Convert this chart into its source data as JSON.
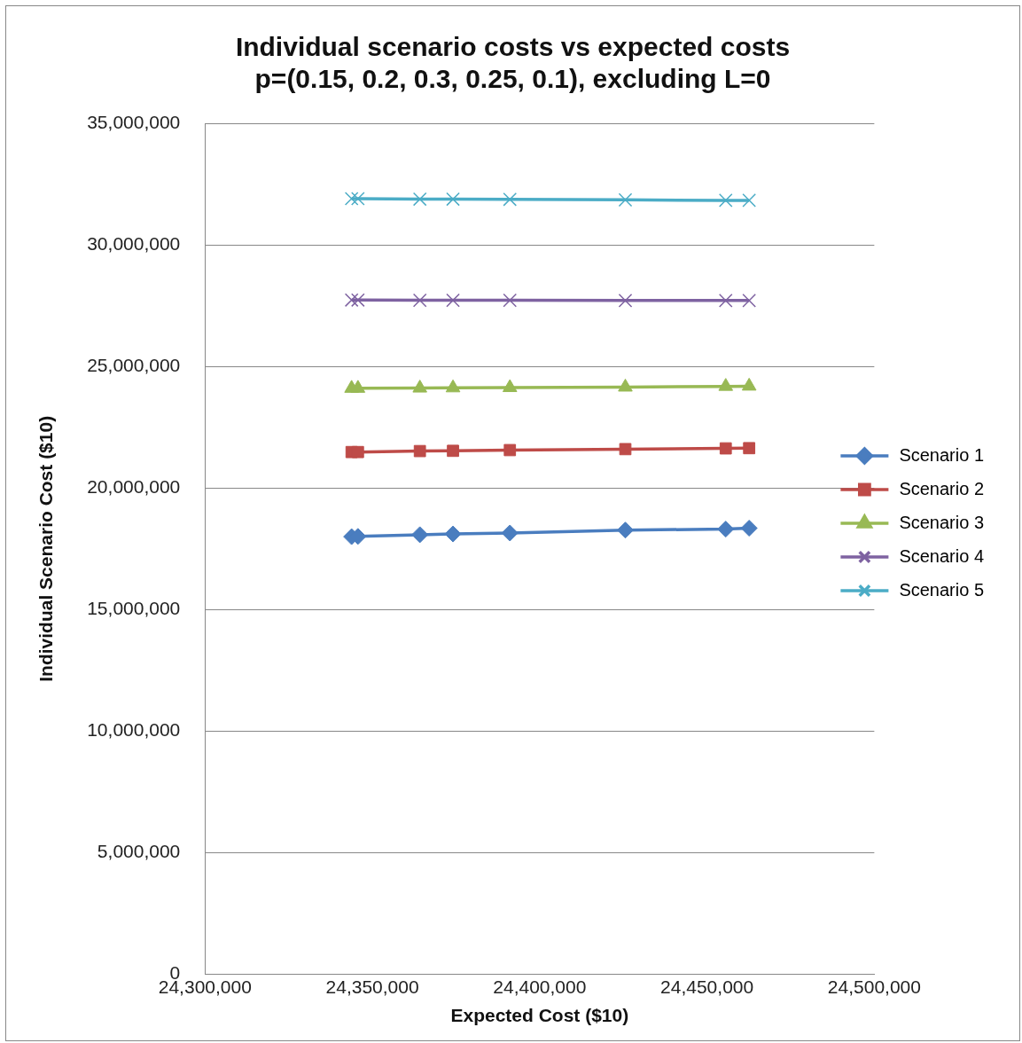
{
  "chart_data": {
    "type": "line",
    "title": [
      "Individual scenario costs vs expected costs",
      "p=(0.15, 0.2, 0.3, 0.25, 0.1), excluding L=0"
    ],
    "xlabel": "Expected Cost ($10)",
    "ylabel": "Individual Scenario Cost ($10)",
    "x": [
      24343800,
      24345700,
      24364200,
      24374100,
      24391100,
      24425600,
      24455600,
      24462600
    ],
    "series": [
      {
        "name": "Scenario 1",
        "color": "#4a7dbf",
        "marker": "diamond",
        "values": [
          18000000,
          18010000,
          18080000,
          18110000,
          18150000,
          18270000,
          18310000,
          18350000
        ]
      },
      {
        "name": "Scenario 2",
        "color": "#be4b48",
        "marker": "square",
        "values": [
          21480000,
          21480000,
          21520000,
          21530000,
          21560000,
          21600000,
          21630000,
          21640000
        ]
      },
      {
        "name": "Scenario 3",
        "color": "#98b954",
        "marker": "triangle",
        "values": [
          24100000,
          24100000,
          24110000,
          24120000,
          24130000,
          24150000,
          24180000,
          24190000
        ]
      },
      {
        "name": "Scenario 4",
        "color": "#7e62a1",
        "marker": "cross",
        "values": [
          27730000,
          27730000,
          27720000,
          27720000,
          27720000,
          27710000,
          27710000,
          27710000
        ]
      },
      {
        "name": "Scenario 5",
        "color": "#4bacc6",
        "marker": "cross",
        "values": [
          31900000,
          31900000,
          31880000,
          31880000,
          31870000,
          31850000,
          31830000,
          31830000
        ]
      }
    ],
    "xlim": [
      24300000,
      24500000
    ],
    "xticks": [
      {
        "value": 24300000,
        "label": "24,300,000"
      },
      {
        "value": 24350000,
        "label": "24,350,000"
      },
      {
        "value": 24400000,
        "label": "24,400,000"
      },
      {
        "value": 24450000,
        "label": "24,450,000"
      },
      {
        "value": 24500000,
        "label": "24,500,000"
      }
    ],
    "ylim": [
      0,
      35000000
    ],
    "yticks": [
      0,
      {
        "value": 5000000,
        "label": "5,000,000"
      },
      {
        "value": 10000000,
        "label": "10,000,000"
      },
      {
        "value": 15000000,
        "label": "15,000,000"
      },
      {
        "value": 20000000,
        "label": "20,000,000"
      },
      {
        "value": 25000000,
        "label": "25,000,000"
      },
      {
        "value": 30000000,
        "label": "30,000,000"
      },
      {
        "value": 35000000,
        "label": "35,000,000"
      }
    ],
    "grid": "y",
    "legend": "right",
    "line_style": "solid"
  }
}
